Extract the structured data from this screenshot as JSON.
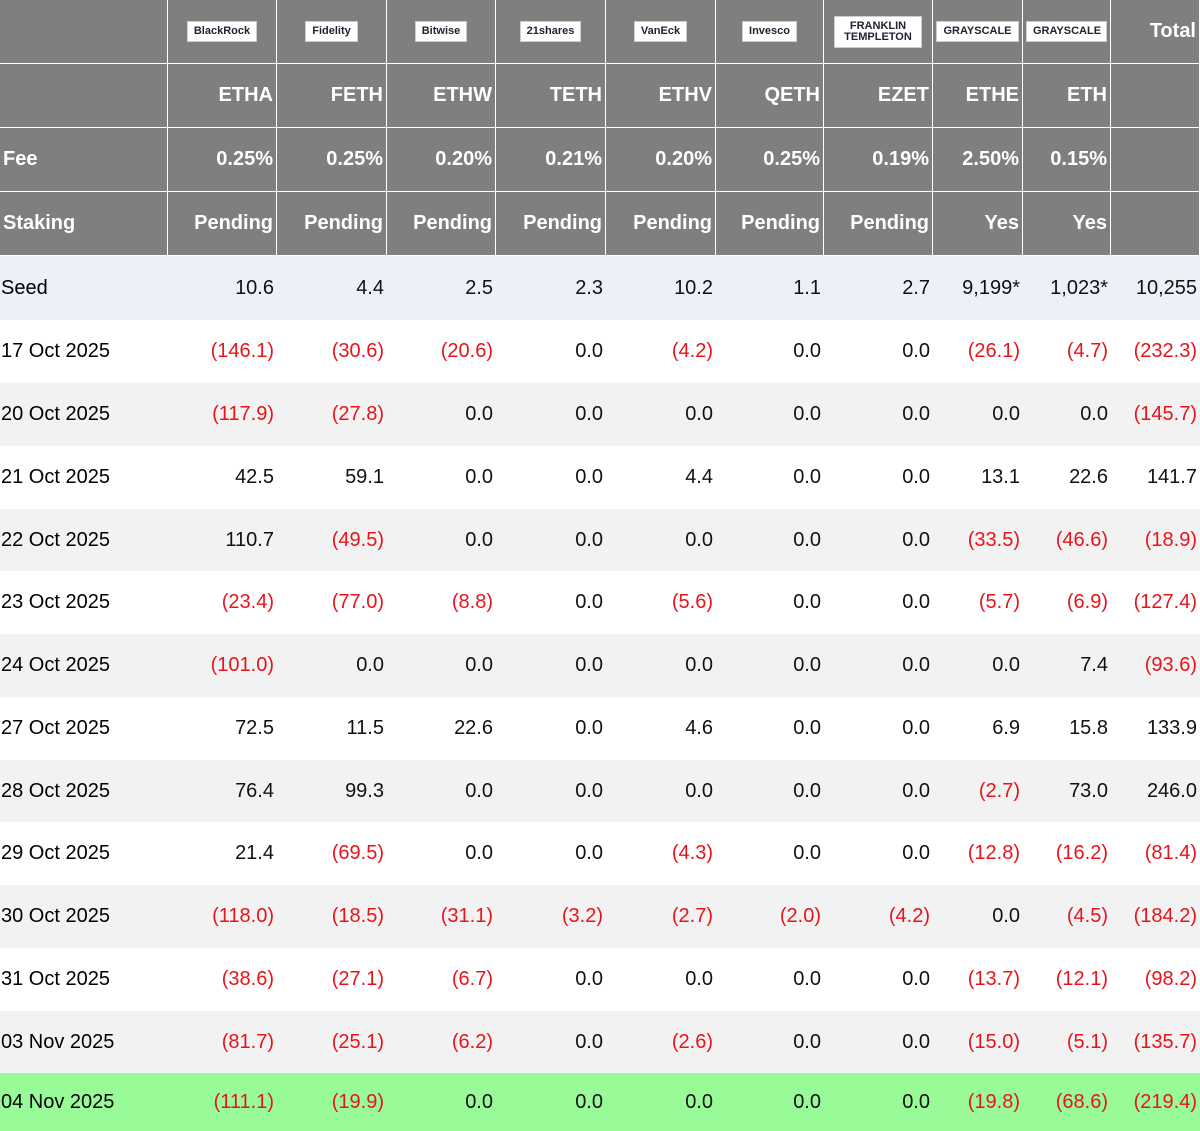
{
  "header": {
    "logos": [
      "BlackRock",
      "Fidelity",
      "Bitwise",
      "21shares",
      "VanEck",
      "Invesco",
      "FRANKLIN TEMPLETON",
      "GRAYSCALE",
      "GRAYSCALE"
    ],
    "total": "Total",
    "tickers": [
      "ETHA",
      "FETH",
      "ETHW",
      "TETH",
      "ETHV",
      "QETH",
      "EZET",
      "ETHE",
      "ETH"
    ],
    "fee": {
      "label": "Fee",
      "values": [
        "0.25%",
        "0.25%",
        "0.20%",
        "0.21%",
        "0.20%",
        "0.25%",
        "0.19%",
        "2.50%",
        "0.15%"
      ]
    },
    "staking": {
      "label": "Staking",
      "values": [
        "Pending",
        "Pending",
        "Pending",
        "Pending",
        "Pending",
        "Pending",
        "Pending",
        "Yes",
        "Yes"
      ]
    }
  },
  "table": {
    "rows": [
      {
        "date": "Seed",
        "values": [
          "10.6",
          "4.4",
          "2.5",
          "2.3",
          "10.2",
          "1.1",
          "2.7",
          "9,199*",
          "1,023*",
          "10,255"
        ]
      },
      {
        "date": "17 Oct 2025",
        "values": [
          "(146.1)",
          "(30.6)",
          "(20.6)",
          "0.0",
          "(4.2)",
          "0.0",
          "0.0",
          "(26.1)",
          "(4.7)",
          "(232.3)"
        ]
      },
      {
        "date": "20 Oct 2025",
        "values": [
          "(117.9)",
          "(27.8)",
          "0.0",
          "0.0",
          "0.0",
          "0.0",
          "0.0",
          "0.0",
          "0.0",
          "(145.7)"
        ]
      },
      {
        "date": "21 Oct 2025",
        "values": [
          "42.5",
          "59.1",
          "0.0",
          "0.0",
          "4.4",
          "0.0",
          "0.0",
          "13.1",
          "22.6",
          "141.7"
        ]
      },
      {
        "date": "22 Oct 2025",
        "values": [
          "110.7",
          "(49.5)",
          "0.0",
          "0.0",
          "0.0",
          "0.0",
          "0.0",
          "(33.5)",
          "(46.6)",
          "(18.9)"
        ]
      },
      {
        "date": "23 Oct 2025",
        "values": [
          "(23.4)",
          "(77.0)",
          "(8.8)",
          "0.0",
          "(5.6)",
          "0.0",
          "0.0",
          "(5.7)",
          "(6.9)",
          "(127.4)"
        ]
      },
      {
        "date": "24 Oct 2025",
        "values": [
          "(101.0)",
          "0.0",
          "0.0",
          "0.0",
          "0.0",
          "0.0",
          "0.0",
          "0.0",
          "7.4",
          "(93.6)"
        ]
      },
      {
        "date": "27 Oct 2025",
        "values": [
          "72.5",
          "11.5",
          "22.6",
          "0.0",
          "4.6",
          "0.0",
          "0.0",
          "6.9",
          "15.8",
          "133.9"
        ]
      },
      {
        "date": "28 Oct 2025",
        "values": [
          "76.4",
          "99.3",
          "0.0",
          "0.0",
          "0.0",
          "0.0",
          "0.0",
          "(2.7)",
          "73.0",
          "246.0"
        ]
      },
      {
        "date": "29 Oct 2025",
        "values": [
          "21.4",
          "(69.5)",
          "0.0",
          "0.0",
          "(4.3)",
          "0.0",
          "0.0",
          "(12.8)",
          "(16.2)",
          "(81.4)"
        ]
      },
      {
        "date": "30 Oct 2025",
        "values": [
          "(118.0)",
          "(18.5)",
          "(31.1)",
          "(3.2)",
          "(2.7)",
          "(2.0)",
          "(4.2)",
          "0.0",
          "(4.5)",
          "(184.2)"
        ]
      },
      {
        "date": "31 Oct 2025",
        "values": [
          "(38.6)",
          "(27.1)",
          "(6.7)",
          "0.0",
          "0.0",
          "0.0",
          "0.0",
          "(13.7)",
          "(12.1)",
          "(98.2)"
        ]
      },
      {
        "date": "03 Nov 2025",
        "values": [
          "(81.7)",
          "(25.1)",
          "(6.2)",
          "0.0",
          "(2.6)",
          "0.0",
          "0.0",
          "(15.0)",
          "(5.1)",
          "(135.7)"
        ]
      },
      {
        "date": "04 Nov 2025",
        "values": [
          "(111.1)",
          "(19.9)",
          "0.0",
          "0.0",
          "0.0",
          "0.0",
          "0.0",
          "(19.8)",
          "(68.6)",
          "(219.4)"
        ]
      }
    ]
  }
}
